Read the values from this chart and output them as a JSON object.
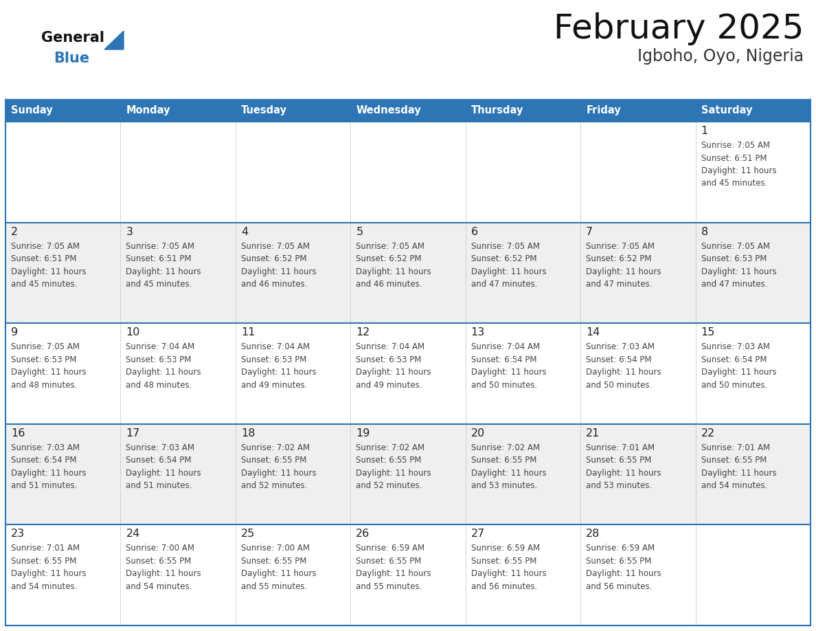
{
  "title": "February 2025",
  "subtitle": "Igboho, Oyo, Nigeria",
  "header_bg": "#2e75b6",
  "header_text_color": "#ffffff",
  "day_names": [
    "Sunday",
    "Monday",
    "Tuesday",
    "Wednesday",
    "Thursday",
    "Friday",
    "Saturday"
  ],
  "bg_color": "#ffffff",
  "cell_bg_white": "#ffffff",
  "cell_bg_gray": "#efefef",
  "text_color": "#444444",
  "day_num_color": "#222222",
  "border_color": "#2e75b6",
  "separator_color": "#2e75b6",
  "vert_line_color": "#cccccc",
  "logo_general_color": "#111111",
  "logo_blue_color": "#2e75b6",
  "calendar": [
    [
      {
        "day": null,
        "sunrise": null,
        "sunset": null,
        "daylight": null
      },
      {
        "day": null,
        "sunrise": null,
        "sunset": null,
        "daylight": null
      },
      {
        "day": null,
        "sunrise": null,
        "sunset": null,
        "daylight": null
      },
      {
        "day": null,
        "sunrise": null,
        "sunset": null,
        "daylight": null
      },
      {
        "day": null,
        "sunrise": null,
        "sunset": null,
        "daylight": null
      },
      {
        "day": null,
        "sunrise": null,
        "sunset": null,
        "daylight": null
      },
      {
        "day": 1,
        "sunrise": "7:05 AM",
        "sunset": "6:51 PM",
        "daylight": "11 hours\nand 45 minutes."
      }
    ],
    [
      {
        "day": 2,
        "sunrise": "7:05 AM",
        "sunset": "6:51 PM",
        "daylight": "11 hours\nand 45 minutes."
      },
      {
        "day": 3,
        "sunrise": "7:05 AM",
        "sunset": "6:51 PM",
        "daylight": "11 hours\nand 45 minutes."
      },
      {
        "day": 4,
        "sunrise": "7:05 AM",
        "sunset": "6:52 PM",
        "daylight": "11 hours\nand 46 minutes."
      },
      {
        "day": 5,
        "sunrise": "7:05 AM",
        "sunset": "6:52 PM",
        "daylight": "11 hours\nand 46 minutes."
      },
      {
        "day": 6,
        "sunrise": "7:05 AM",
        "sunset": "6:52 PM",
        "daylight": "11 hours\nand 47 minutes."
      },
      {
        "day": 7,
        "sunrise": "7:05 AM",
        "sunset": "6:52 PM",
        "daylight": "11 hours\nand 47 minutes."
      },
      {
        "day": 8,
        "sunrise": "7:05 AM",
        "sunset": "6:53 PM",
        "daylight": "11 hours\nand 47 minutes."
      }
    ],
    [
      {
        "day": 9,
        "sunrise": "7:05 AM",
        "sunset": "6:53 PM",
        "daylight": "11 hours\nand 48 minutes."
      },
      {
        "day": 10,
        "sunrise": "7:04 AM",
        "sunset": "6:53 PM",
        "daylight": "11 hours\nand 48 minutes."
      },
      {
        "day": 11,
        "sunrise": "7:04 AM",
        "sunset": "6:53 PM",
        "daylight": "11 hours\nand 49 minutes."
      },
      {
        "day": 12,
        "sunrise": "7:04 AM",
        "sunset": "6:53 PM",
        "daylight": "11 hours\nand 49 minutes."
      },
      {
        "day": 13,
        "sunrise": "7:04 AM",
        "sunset": "6:54 PM",
        "daylight": "11 hours\nand 50 minutes."
      },
      {
        "day": 14,
        "sunrise": "7:03 AM",
        "sunset": "6:54 PM",
        "daylight": "11 hours\nand 50 minutes."
      },
      {
        "day": 15,
        "sunrise": "7:03 AM",
        "sunset": "6:54 PM",
        "daylight": "11 hours\nand 50 minutes."
      }
    ],
    [
      {
        "day": 16,
        "sunrise": "7:03 AM",
        "sunset": "6:54 PM",
        "daylight": "11 hours\nand 51 minutes."
      },
      {
        "day": 17,
        "sunrise": "7:03 AM",
        "sunset": "6:54 PM",
        "daylight": "11 hours\nand 51 minutes."
      },
      {
        "day": 18,
        "sunrise": "7:02 AM",
        "sunset": "6:55 PM",
        "daylight": "11 hours\nand 52 minutes."
      },
      {
        "day": 19,
        "sunrise": "7:02 AM",
        "sunset": "6:55 PM",
        "daylight": "11 hours\nand 52 minutes."
      },
      {
        "day": 20,
        "sunrise": "7:02 AM",
        "sunset": "6:55 PM",
        "daylight": "11 hours\nand 53 minutes."
      },
      {
        "day": 21,
        "sunrise": "7:01 AM",
        "sunset": "6:55 PM",
        "daylight": "11 hours\nand 53 minutes."
      },
      {
        "day": 22,
        "sunrise": "7:01 AM",
        "sunset": "6:55 PM",
        "daylight": "11 hours\nand 54 minutes."
      }
    ],
    [
      {
        "day": 23,
        "sunrise": "7:01 AM",
        "sunset": "6:55 PM",
        "daylight": "11 hours\nand 54 minutes."
      },
      {
        "day": 24,
        "sunrise": "7:00 AM",
        "sunset": "6:55 PM",
        "daylight": "11 hours\nand 54 minutes."
      },
      {
        "day": 25,
        "sunrise": "7:00 AM",
        "sunset": "6:55 PM",
        "daylight": "11 hours\nand 55 minutes."
      },
      {
        "day": 26,
        "sunrise": "6:59 AM",
        "sunset": "6:55 PM",
        "daylight": "11 hours\nand 55 minutes."
      },
      {
        "day": 27,
        "sunrise": "6:59 AM",
        "sunset": "6:55 PM",
        "daylight": "11 hours\nand 56 minutes."
      },
      {
        "day": 28,
        "sunrise": "6:59 AM",
        "sunset": "6:55 PM",
        "daylight": "11 hours\nand 56 minutes."
      },
      {
        "day": null,
        "sunrise": null,
        "sunset": null,
        "daylight": null
      }
    ]
  ],
  "row_bg": [
    "#ffffff",
    "#efefef",
    "#ffffff",
    "#efefef",
    "#ffffff"
  ]
}
